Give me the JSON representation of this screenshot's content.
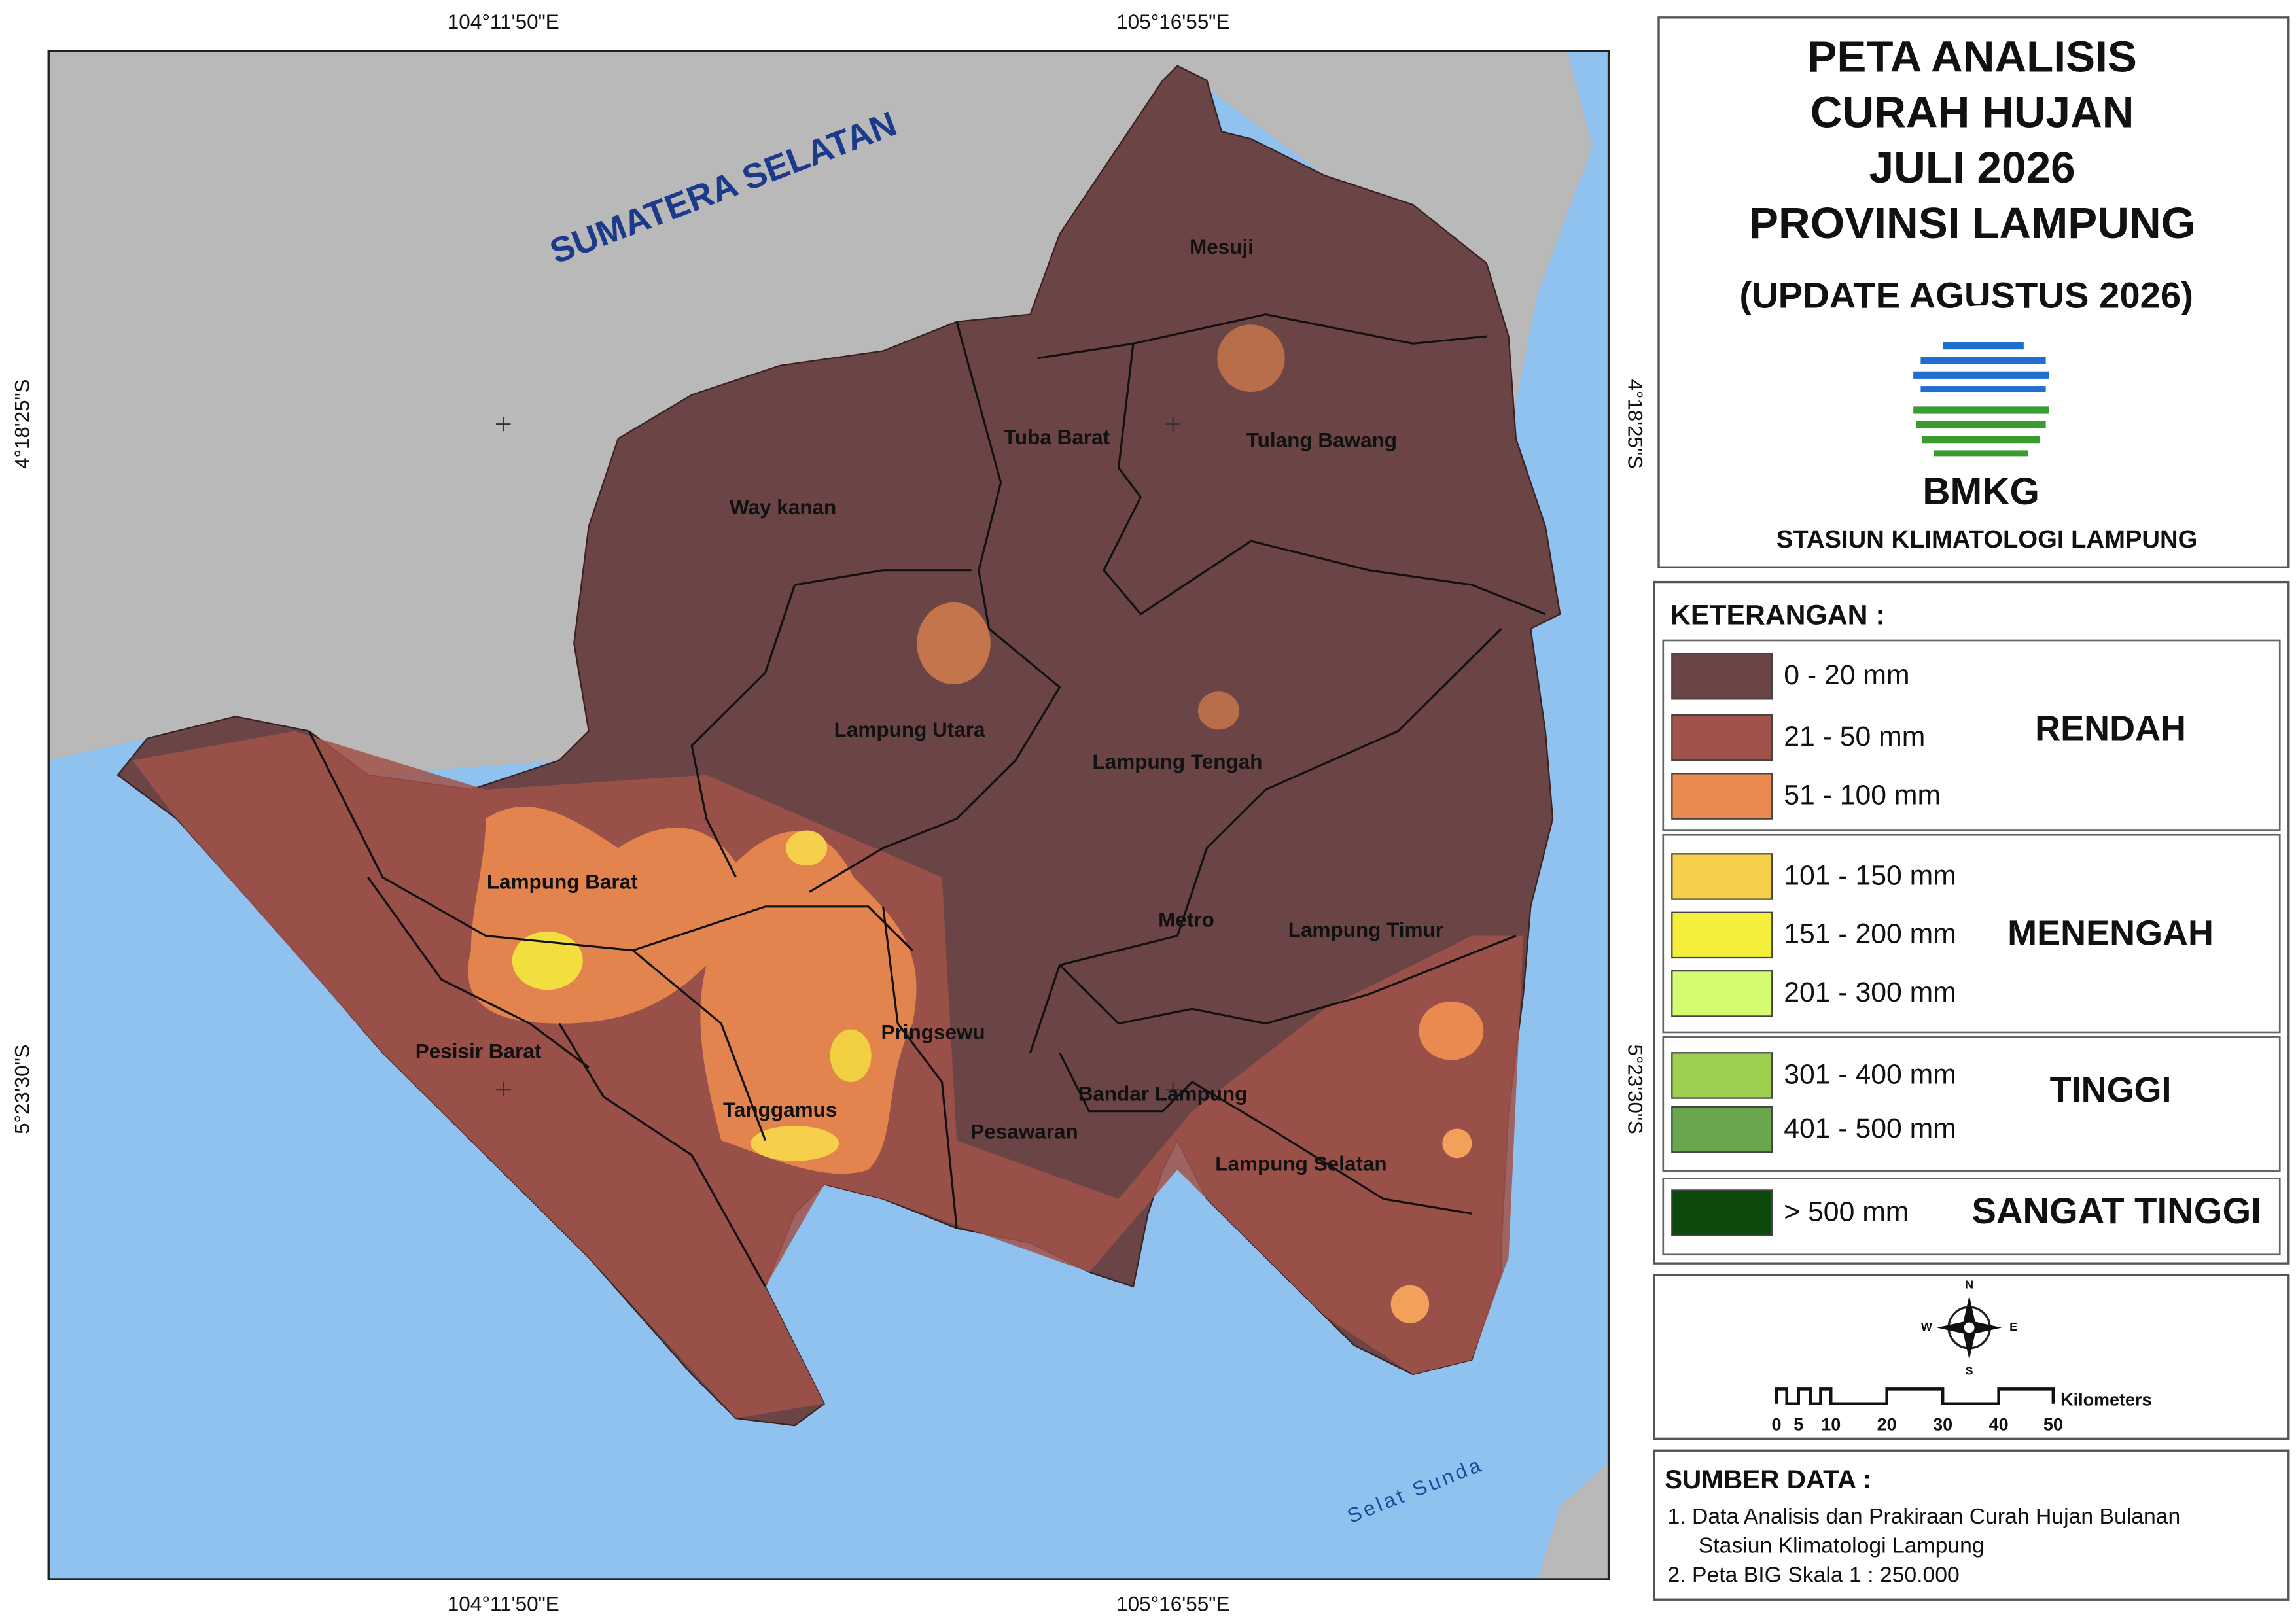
{
  "title": {
    "lines": [
      "PETA ANALISIS",
      "CURAH HUJAN",
      "JULI 2026",
      "PROVINSI LAMPUNG"
    ],
    "update": "(UPDATE AGUSTUS 2026)",
    "logo_text": "BMKG",
    "station": "STASIUN  KLIMATOLOGI  LAMPUNG"
  },
  "coordinates": {
    "top": [
      "104°11'50\"E",
      "105°16'55\"E"
    ],
    "bottom": [
      "104°11'50\"E",
      "105°16'55\"E"
    ],
    "left": [
      "4°18'25\"S",
      "5°23'30\"S"
    ],
    "right": [
      "4°18'25\"S",
      "5°23'30\"S"
    ]
  },
  "map_labels": {
    "neighbor": "SUMATERA  SELATAN",
    "sea": "Selat  Sunda",
    "regions": [
      "Mesuji",
      "Tuba Barat",
      "Tulang Bawang",
      "Way kanan",
      "Lampung Utara",
      "Lampung Tengah",
      "Lampung Barat",
      "Metro",
      "Lampung Timur",
      "Pringsewu",
      "Pesisir Barat",
      "Tanggamus",
      "Bandar Lampung",
      "Pesawaran",
      "Lampung Selatan"
    ]
  },
  "legend": {
    "title": "KETERANGAN :",
    "groups": [
      {
        "name": "RENDAH",
        "items": [
          {
            "label": "0 - 20  mm",
            "color": "#6b4545"
          },
          {
            "label": "21 - 50  mm",
            "color": "#a1524a"
          },
          {
            "label": "51 - 100  mm",
            "color": "#eb8a50"
          }
        ]
      },
      {
        "name": "MENENGAH",
        "items": [
          {
            "label": "101 - 150  mm",
            "color": "#f6cf4b"
          },
          {
            "label": "151 - 200  mm",
            "color": "#f5ef3c"
          },
          {
            "label": "201 - 300  mm",
            "color": "#d5fb70"
          }
        ]
      },
      {
        "name": "TINGGI",
        "items": [
          {
            "label": "301 - 400  mm",
            "color": "#9ccf4d"
          },
          {
            "label": "401 - 500  mm",
            "color": "#6aa650"
          }
        ]
      },
      {
        "name": "SANGAT TINGGI",
        "items": [
          {
            "label": "> 500  mm",
            "color": "#0c4a0c"
          }
        ]
      }
    ]
  },
  "compass": {
    "north": "N",
    "east": "E",
    "south": "S",
    "west": "W"
  },
  "scale": {
    "unit": "Kilometers",
    "ticks": [
      0,
      5,
      10,
      20,
      30,
      40,
      50
    ]
  },
  "source": {
    "title": "SUMBER DATA :",
    "items": [
      "1. Data Analisis dan Prakiraan Curah Hujan Bulanan",
      "Stasiun Klimatologi Lampung",
      "2. Peta BIG Skala 1 : 250.000"
    ]
  }
}
